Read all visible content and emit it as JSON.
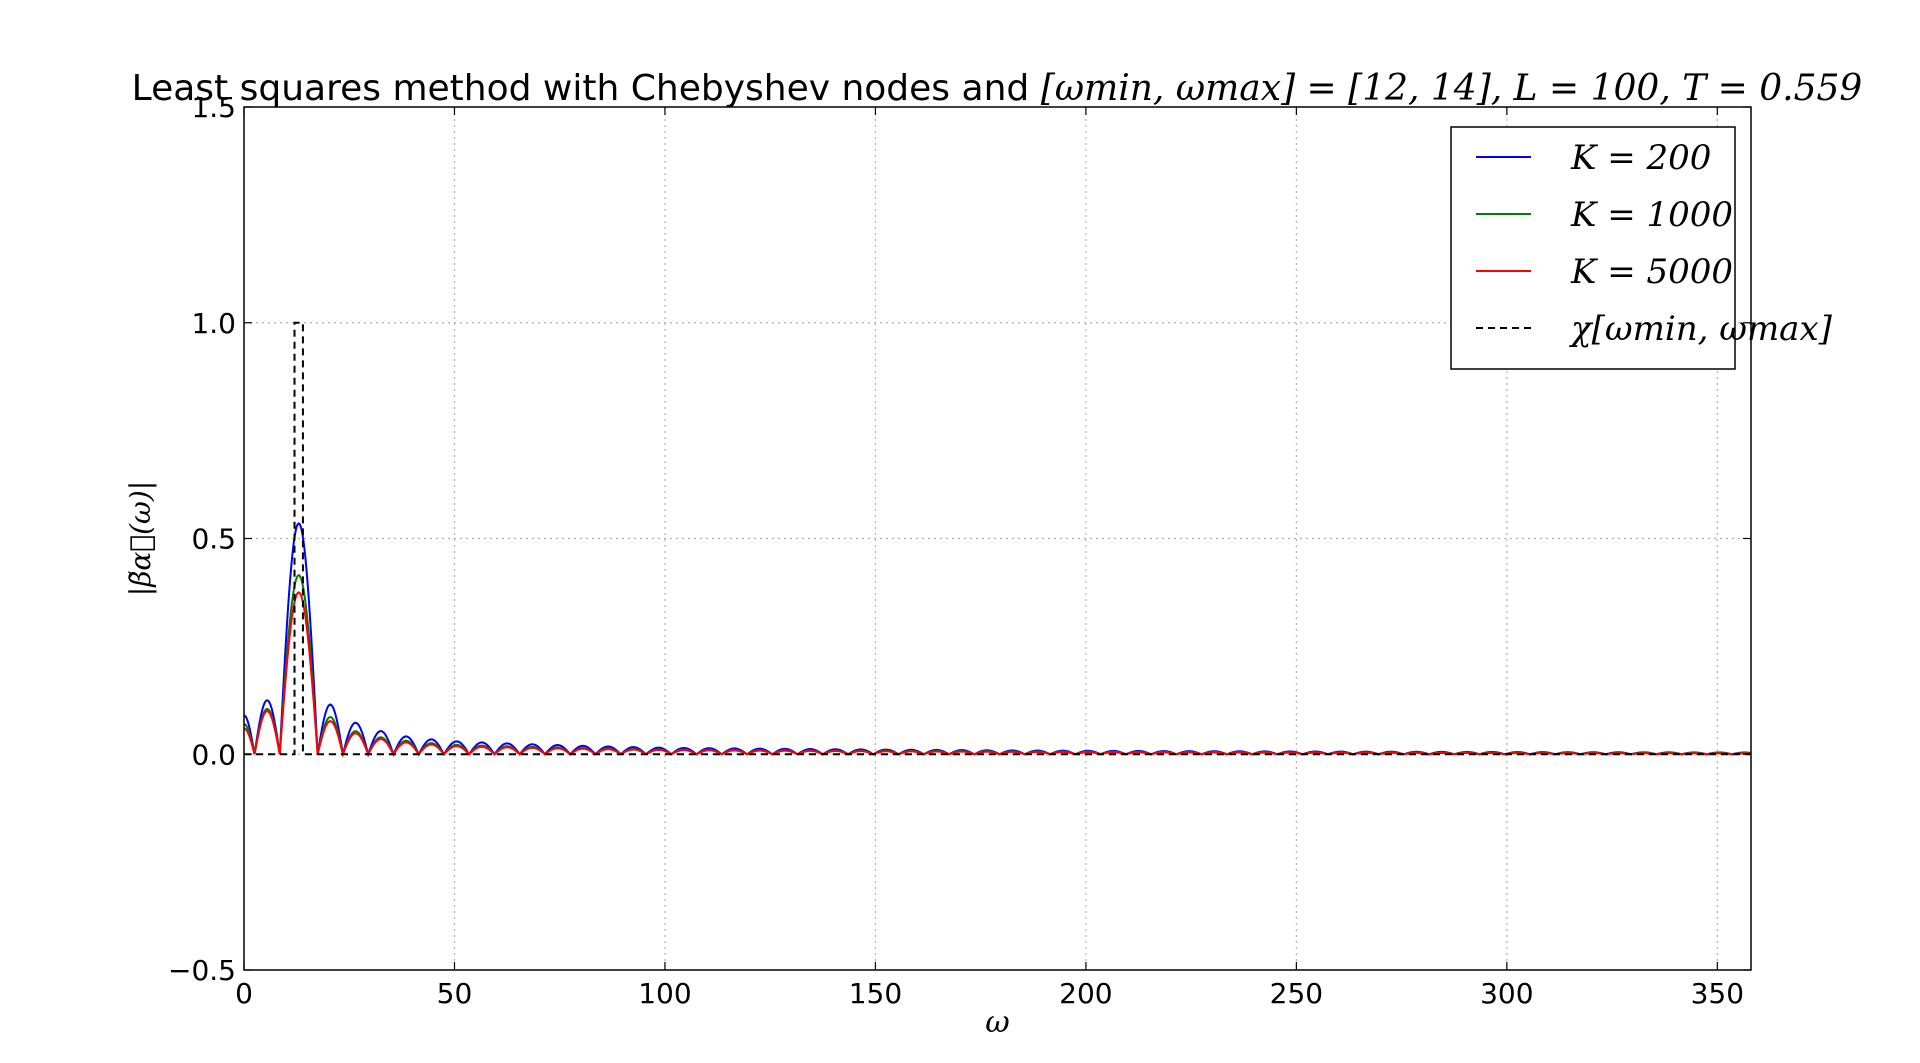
{
  "chart_data": {
    "type": "line",
    "title": "Least squares method with Chebyshev nodes and [ω_min, ω_max] = [12, 14], L = 100, T = 0.559",
    "title_plain": "Least squares method with Chebyshev nodes and ",
    "title_math": "[ωmin, ωmax] = [12, 14], L = 100, T = 0.559",
    "xlabel": "ω",
    "ylabel": "|β̃α⃗(ω)|",
    "xlim": [
      0,
      358
    ],
    "ylim": [
      -0.5,
      1.5
    ],
    "xticks": [
      0,
      50,
      100,
      150,
      200,
      250,
      300,
      350
    ],
    "xtick_labels": [
      "0",
      "50",
      "100",
      "150",
      "200",
      "250",
      "300",
      "350"
    ],
    "yticks": [
      -0.5,
      0.0,
      0.5,
      1.0,
      1.5
    ],
    "ytick_labels": [
      "−0.5",
      "0.0",
      "0.5",
      "1.0",
      "1.5"
    ],
    "grid": true,
    "legend_position": "top-right",
    "series": [
      {
        "name": "K = 200",
        "color": "#0000ff",
        "style": "solid",
        "peaks": [
          [
            0,
            0.09
          ],
          [
            5,
            0.125
          ],
          [
            13,
            0.535
          ],
          [
            20,
            0.12
          ],
          [
            26,
            0.075
          ],
          [
            32,
            0.055
          ],
          [
            38,
            0.042
          ],
          [
            44,
            0.035
          ],
          [
            50,
            0.03
          ],
          [
            100,
            0.015
          ],
          [
            200,
            0.008
          ],
          [
            358,
            0.004
          ]
        ],
        "zeros": [
          2.5,
          8.5,
          17.5
        ]
      },
      {
        "name": "K = 1000",
        "color": "#008000",
        "style": "solid",
        "peaks": [
          [
            0,
            0.07
          ],
          [
            5,
            0.105
          ],
          [
            13,
            0.415
          ],
          [
            20,
            0.09
          ],
          [
            26,
            0.055
          ],
          [
            32,
            0.04
          ],
          [
            38,
            0.032
          ],
          [
            44,
            0.026
          ],
          [
            50,
            0.022
          ],
          [
            100,
            0.011
          ],
          [
            200,
            0.006
          ],
          [
            358,
            0.003
          ]
        ],
        "zeros": [
          2.5,
          8.5,
          17.5
        ]
      },
      {
        "name": "K = 5000",
        "color": "#ff0000",
        "style": "solid",
        "peaks": [
          [
            0,
            0.06
          ],
          [
            5,
            0.1
          ],
          [
            13,
            0.375
          ],
          [
            20,
            0.08
          ],
          [
            26,
            0.05
          ],
          [
            32,
            0.036
          ],
          [
            38,
            0.028
          ],
          [
            44,
            0.023
          ],
          [
            50,
            0.019
          ],
          [
            100,
            0.01
          ],
          [
            200,
            0.005
          ],
          [
            358,
            0.002
          ]
        ],
        "zeros": [
          2.5,
          8.5,
          17.5
        ]
      },
      {
        "name": "χ[ωmin, ωmax]",
        "color": "#000000",
        "style": "dashed",
        "x": [
          0,
          12,
          12,
          14,
          14,
          358
        ],
        "y": [
          0,
          0,
          1,
          1,
          0,
          0
        ]
      }
    ],
    "legend_labels": [
      "K = 200",
      "K = 1000",
      "K = 5000",
      "χ[ωmin, ωmax]"
    ]
  }
}
